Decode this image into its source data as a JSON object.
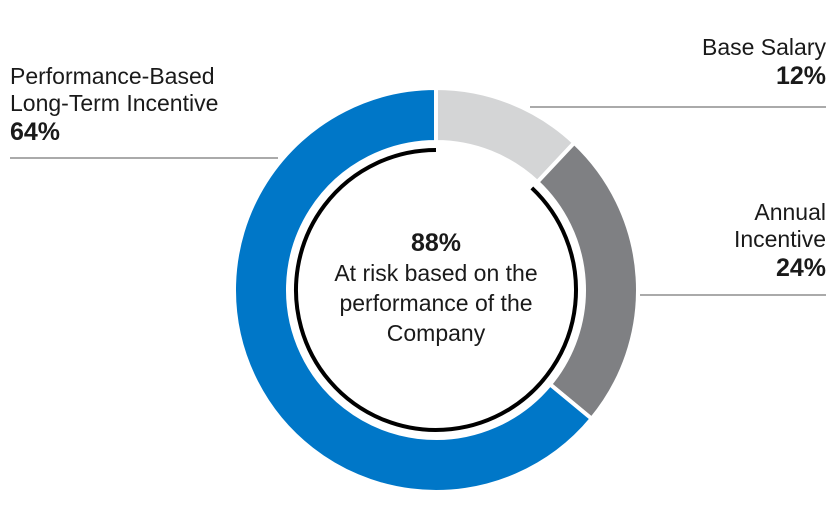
{
  "chart_data": {
    "type": "pie",
    "variant": "donut",
    "slices": [
      {
        "label": "Base Salary",
        "value": 12,
        "pct_label": "12%",
        "color": "#d4d5d6"
      },
      {
        "label": "Annual Incentive",
        "value": 24,
        "pct_label": "24%",
        "color": "#7f8083"
      },
      {
        "label": "Performance-Based Long-Term Incentive",
        "value": 64,
        "pct_label": "64%",
        "color": "#0077c8"
      }
    ],
    "label_lines": {
      "base": [
        "Base Salary"
      ],
      "annual": [
        "Annual",
        "Incentive"
      ],
      "perf": [
        "Performance-Based",
        "Long-Term Incentive"
      ]
    },
    "center": {
      "value": "88%",
      "lines": [
        "At risk based on the",
        "performance of the",
        "Company"
      ]
    },
    "inner_arc_fraction": 0.88,
    "inner_arc_color": "#000000",
    "leader_color": "#555555"
  }
}
